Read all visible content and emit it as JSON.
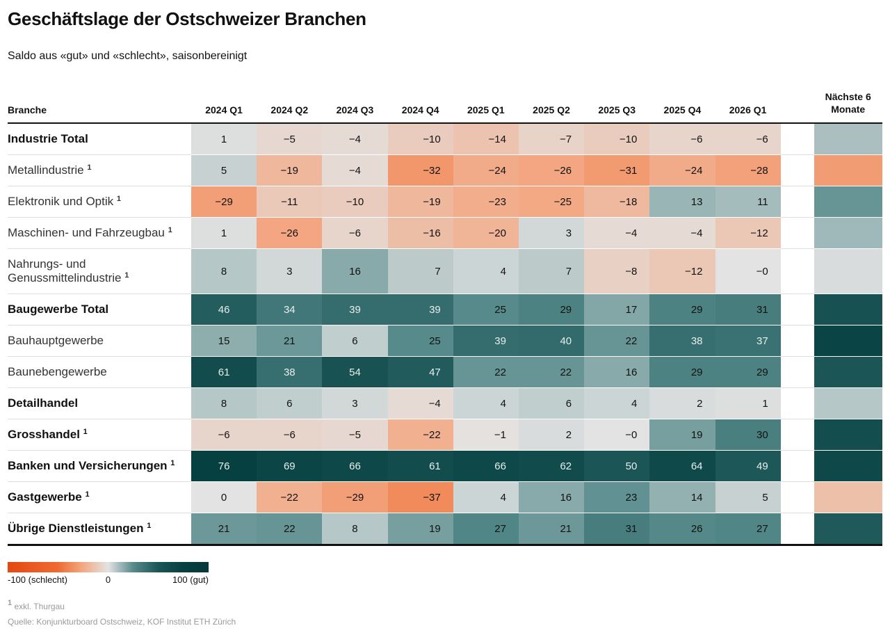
{
  "title": "Geschäftslage der Ostschweizer Branchen",
  "subtitle": "Saldo aus «gut» und «schlecht», saisonbereinigt",
  "chart_data": {
    "type": "heatmap",
    "row_header": "Branche",
    "categories": [
      "2024 Q1",
      "2024 Q2",
      "2024 Q3",
      "2024 Q4",
      "2025 Q1",
      "2025 Q2",
      "2025 Q3",
      "2025 Q4",
      "2026 Q1"
    ],
    "outlook_label": "Nächste 6 Monate",
    "rows": [
      {
        "name": "Industrie Total",
        "bold": true
      },
      {
        "name": "Metallindustrie",
        "note": "1",
        "bold": false
      },
      {
        "name": "Elektronik und Optik",
        "note": "1",
        "bold": false
      },
      {
        "name": "Maschinen- und Fahrzeugbau",
        "note": "1",
        "bold": false
      },
      {
        "name": "Nahrungs- und Genussmittelindustrie",
        "note": "1",
        "bold": false
      },
      {
        "name": "Baugewerbe Total",
        "bold": true
      },
      {
        "name": "Bauhauptgewerbe",
        "bold": false
      },
      {
        "name": "Baunebengewerbe",
        "bold": false
      },
      {
        "name": "Detailhandel",
        "bold": true
      },
      {
        "name": "Grosshandel",
        "note": "1",
        "bold": true
      },
      {
        "name": "Banken und Versicherungen",
        "note": "1",
        "bold": true
      },
      {
        "name": "Gastgewerbe",
        "note": "1",
        "bold": true
      },
      {
        "name": "Übrige Dienstleistungen",
        "note": "1",
        "bold": true
      }
    ],
    "values": [
      [
        1,
        -5,
        -4,
        -10,
        -14,
        -7,
        -10,
        -6,
        -6
      ],
      [
        5,
        -19,
        -4,
        -32,
        -24,
        -26,
        -31,
        -24,
        -28
      ],
      [
        -29,
        -11,
        -10,
        -19,
        -23,
        -25,
        -18,
        13,
        11
      ],
      [
        1,
        -26,
        -6,
        -16,
        -20,
        3,
        -4,
        -4,
        -12
      ],
      [
        8,
        3,
        16,
        7,
        4,
        7,
        -8,
        -12,
        0
      ],
      [
        46,
        34,
        39,
        39,
        25,
        29,
        17,
        29,
        31
      ],
      [
        15,
        21,
        6,
        25,
        39,
        40,
        22,
        38,
        37
      ],
      [
        61,
        38,
        54,
        47,
        22,
        22,
        16,
        29,
        29
      ],
      [
        8,
        6,
        3,
        -4,
        4,
        6,
        4,
        2,
        1
      ],
      [
        -6,
        -6,
        -5,
        -22,
        -1,
        2,
        0,
        19,
        30
      ],
      [
        76,
        69,
        66,
        61,
        66,
        62,
        50,
        64,
        49
      ],
      [
        0,
        -22,
        -29,
        -37,
        4,
        16,
        23,
        14,
        5
      ],
      [
        21,
        22,
        8,
        19,
        27,
        21,
        31,
        26,
        27
      ]
    ],
    "value_labels": [
      [
        "1",
        "−5",
        "−4",
        "−10",
        "−14",
        "−7",
        "−10",
        "−6",
        "−6"
      ],
      [
        "5",
        "−19",
        "−4",
        "−32",
        "−24",
        "−26",
        "−31",
        "−24",
        "−28"
      ],
      [
        "−29",
        "−11",
        "−10",
        "−19",
        "−23",
        "−25",
        "−18",
        "13",
        "11"
      ],
      [
        "1",
        "−26",
        "−6",
        "−16",
        "−20",
        "3",
        "−4",
        "−4",
        "−12"
      ],
      [
        "8",
        "3",
        "16",
        "7",
        "4",
        "7",
        "−8",
        "−12",
        "−0"
      ],
      [
        "46",
        "34",
        "39",
        "39",
        "25",
        "29",
        "17",
        "29",
        "31"
      ],
      [
        "15",
        "21",
        "6",
        "25",
        "39",
        "40",
        "22",
        "38",
        "37"
      ],
      [
        "61",
        "38",
        "54",
        "47",
        "22",
        "22",
        "16",
        "29",
        "29"
      ],
      [
        "8",
        "6",
        "3",
        "−4",
        "4",
        "6",
        "4",
        "2",
        "1"
      ],
      [
        "−6",
        "−6",
        "−5",
        "−22",
        "−1",
        "2",
        "−0",
        "19",
        "30"
      ],
      [
        "76",
        "69",
        "66",
        "61",
        "66",
        "62",
        "50",
        "64",
        "49"
      ],
      [
        "0",
        "−22",
        "−29",
        "−37",
        "4",
        "16",
        "23",
        "14",
        "5"
      ],
      [
        "21",
        "22",
        "8",
        "19",
        "27",
        "21",
        "31",
        "26",
        "27"
      ]
    ],
    "outlook": [
      10,
      -30,
      22,
      12,
      2,
      55,
      70,
      50,
      8,
      60,
      65,
      -15,
      48
    ],
    "clim": [
      -100,
      100
    ],
    "colors": [
      "#e3480f",
      "#e95a22",
      "#ee6a30",
      "#f3a984",
      "#e3e3e3",
      "#568a8b",
      "#1b5556",
      "#074041",
      "#053839"
    ],
    "cticks": [
      {
        "value": -100,
        "label": "-100 (schlecht)"
      },
      0,
      {
        "value": 100,
        "label": "100 (gut)"
      }
    ]
  },
  "footnote": {
    "marker": "1",
    "text": "exkl. Thurgau"
  },
  "source": "Quelle: Konjunkturboard Ostschweiz, KOF Institut ETH Zürich"
}
